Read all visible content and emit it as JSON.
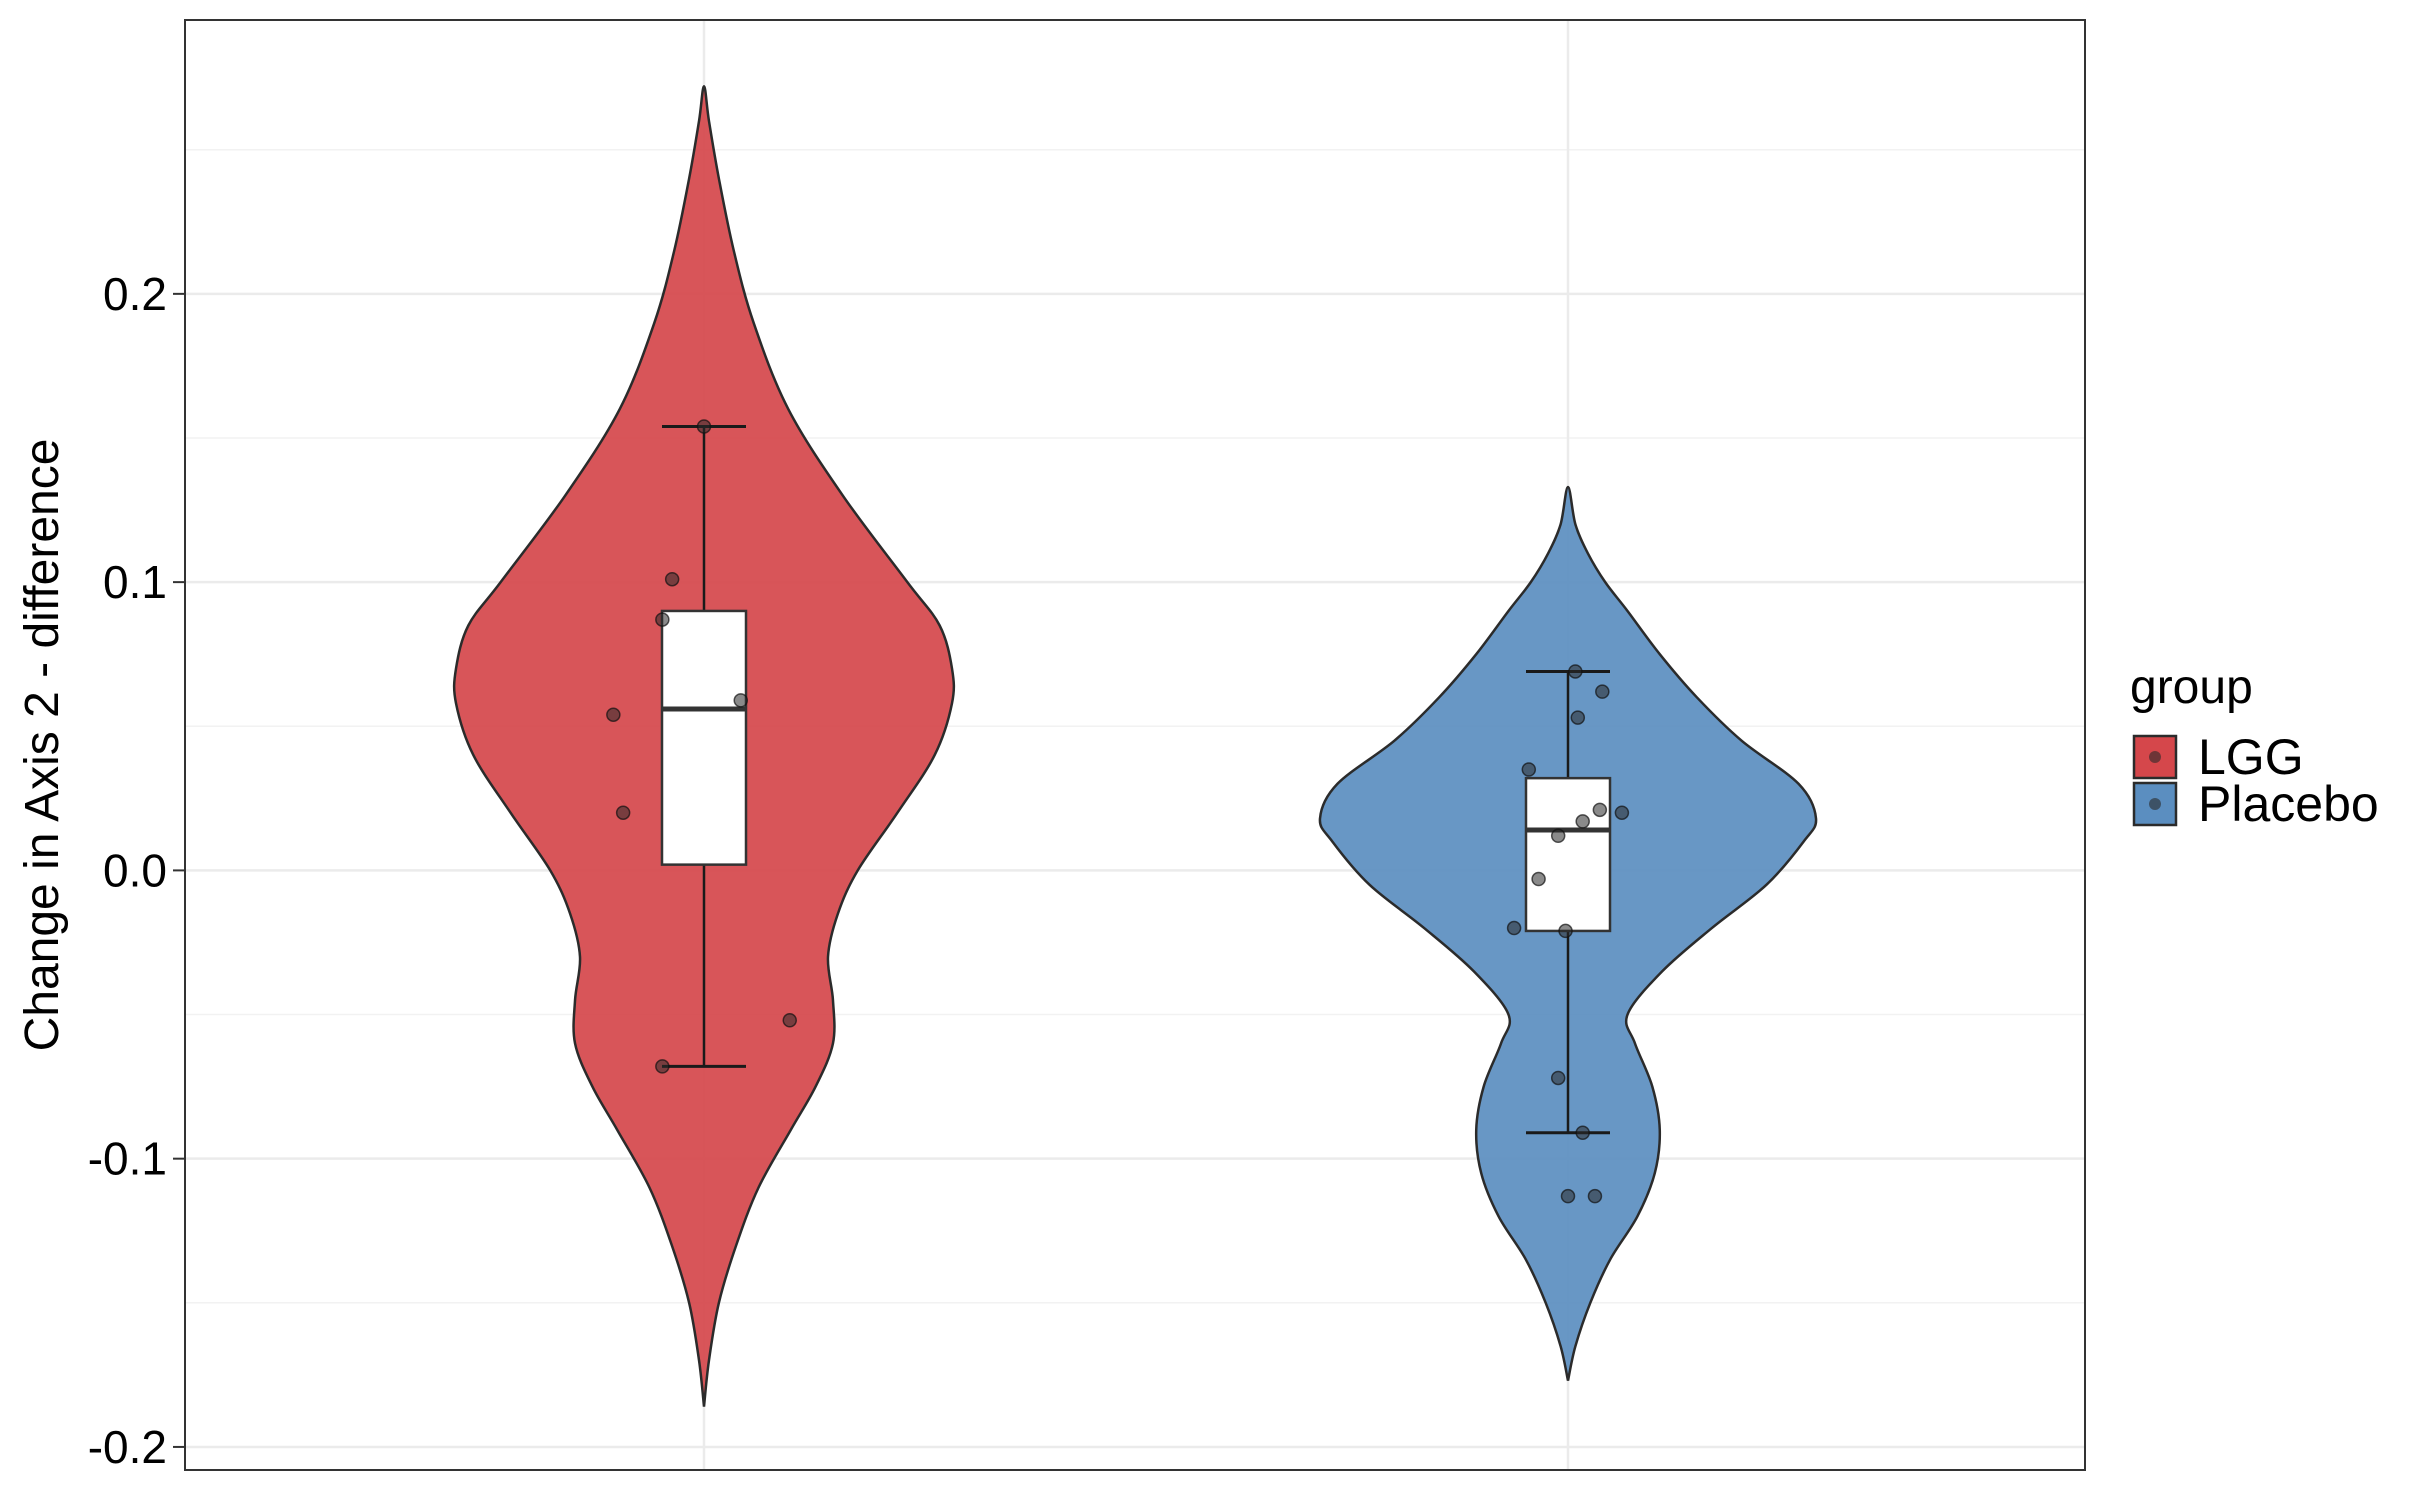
{
  "chart_data": {
    "type": "violin",
    "title": "",
    "xlabel": "",
    "ylabel": "Change in  Axis  2  -  difference",
    "ylim": [
      -0.208,
      0.295
    ],
    "yticks": [
      {
        "value": -0.2,
        "label": "-0.2"
      },
      {
        "value": -0.1,
        "label": "-0.1"
      },
      {
        "value": 0.0,
        "label": "0.0"
      },
      {
        "value": 0.1,
        "label": "0.1"
      },
      {
        "value": 0.2,
        "label": "0.2"
      }
    ],
    "grid": true,
    "legend": {
      "title": "group",
      "position": "right"
    },
    "series": [
      {
        "name": "LGG",
        "color": "#d5474b",
        "box": {
          "lower_whisker": -0.068,
          "q1": 0.002,
          "median": 0.056,
          "q3": 0.09,
          "upper_whisker": 0.154
        },
        "density": [
          [
            -0.186,
            0.0
          ],
          [
            -0.17,
            0.02
          ],
          [
            -0.15,
            0.06
          ],
          [
            -0.13,
            0.13
          ],
          [
            -0.11,
            0.22
          ],
          [
            -0.09,
            0.35
          ],
          [
            -0.075,
            0.45
          ],
          [
            -0.06,
            0.52
          ],
          [
            -0.045,
            0.52
          ],
          [
            -0.03,
            0.5
          ],
          [
            -0.015,
            0.54
          ],
          [
            0.0,
            0.62
          ],
          [
            0.02,
            0.78
          ],
          [
            0.04,
            0.93
          ],
          [
            0.058,
            1.0
          ],
          [
            0.07,
            1.0
          ],
          [
            0.085,
            0.95
          ],
          [
            0.1,
            0.82
          ],
          [
            0.13,
            0.56
          ],
          [
            0.16,
            0.34
          ],
          [
            0.19,
            0.2
          ],
          [
            0.215,
            0.12
          ],
          [
            0.24,
            0.06
          ],
          [
            0.26,
            0.02
          ],
          [
            0.272,
            0.0
          ]
        ],
        "points": [
          {
            "x": 0.0,
            "y": 0.154
          },
          {
            "x": -0.13,
            "y": 0.101
          },
          {
            "x": -0.17,
            "y": 0.087
          },
          {
            "x": -0.37,
            "y": 0.054
          },
          {
            "x": 0.15,
            "y": 0.059
          },
          {
            "x": -0.33,
            "y": 0.02
          },
          {
            "x": 0.35,
            "y": -0.052
          },
          {
            "x": -0.17,
            "y": -0.068
          }
        ]
      },
      {
        "name": "Placebo",
        "color": "#5b8ec0",
        "box": {
          "lower_whisker": -0.091,
          "q1": -0.021,
          "median": 0.014,
          "q3": 0.032,
          "upper_whisker": 0.069
        },
        "density": [
          [
            -0.177,
            0.0
          ],
          [
            -0.165,
            0.03
          ],
          [
            -0.15,
            0.09
          ],
          [
            -0.135,
            0.17
          ],
          [
            -0.12,
            0.28
          ],
          [
            -0.105,
            0.35
          ],
          [
            -0.09,
            0.37
          ],
          [
            -0.075,
            0.34
          ],
          [
            -0.06,
            0.27
          ],
          [
            -0.05,
            0.24
          ],
          [
            -0.035,
            0.38
          ],
          [
            -0.02,
            0.58
          ],
          [
            -0.005,
            0.8
          ],
          [
            0.01,
            0.95
          ],
          [
            0.018,
            1.0
          ],
          [
            0.03,
            0.93
          ],
          [
            0.045,
            0.7
          ],
          [
            0.06,
            0.52
          ],
          [
            0.075,
            0.37
          ],
          [
            0.09,
            0.24
          ],
          [
            0.1,
            0.15
          ],
          [
            0.11,
            0.08
          ],
          [
            0.12,
            0.03
          ],
          [
            0.133,
            0.0
          ]
        ],
        "points": [
          {
            "x": 0.03,
            "y": 0.069
          },
          {
            "x": 0.14,
            "y": 0.062
          },
          {
            "x": 0.04,
            "y": 0.053
          },
          {
            "x": -0.16,
            "y": 0.035
          },
          {
            "x": 0.13,
            "y": 0.021
          },
          {
            "x": 0.22,
            "y": 0.02
          },
          {
            "x": 0.06,
            "y": 0.017
          },
          {
            "x": -0.04,
            "y": 0.012
          },
          {
            "x": -0.12,
            "y": -0.003
          },
          {
            "x": -0.22,
            "y": -0.02
          },
          {
            "x": -0.01,
            "y": -0.021
          },
          {
            "x": -0.04,
            "y": -0.072
          },
          {
            "x": 0.06,
            "y": -0.091
          },
          {
            "x": 0.0,
            "y": -0.113
          },
          {
            "x": 0.11,
            "y": -0.113
          }
        ]
      }
    ]
  }
}
